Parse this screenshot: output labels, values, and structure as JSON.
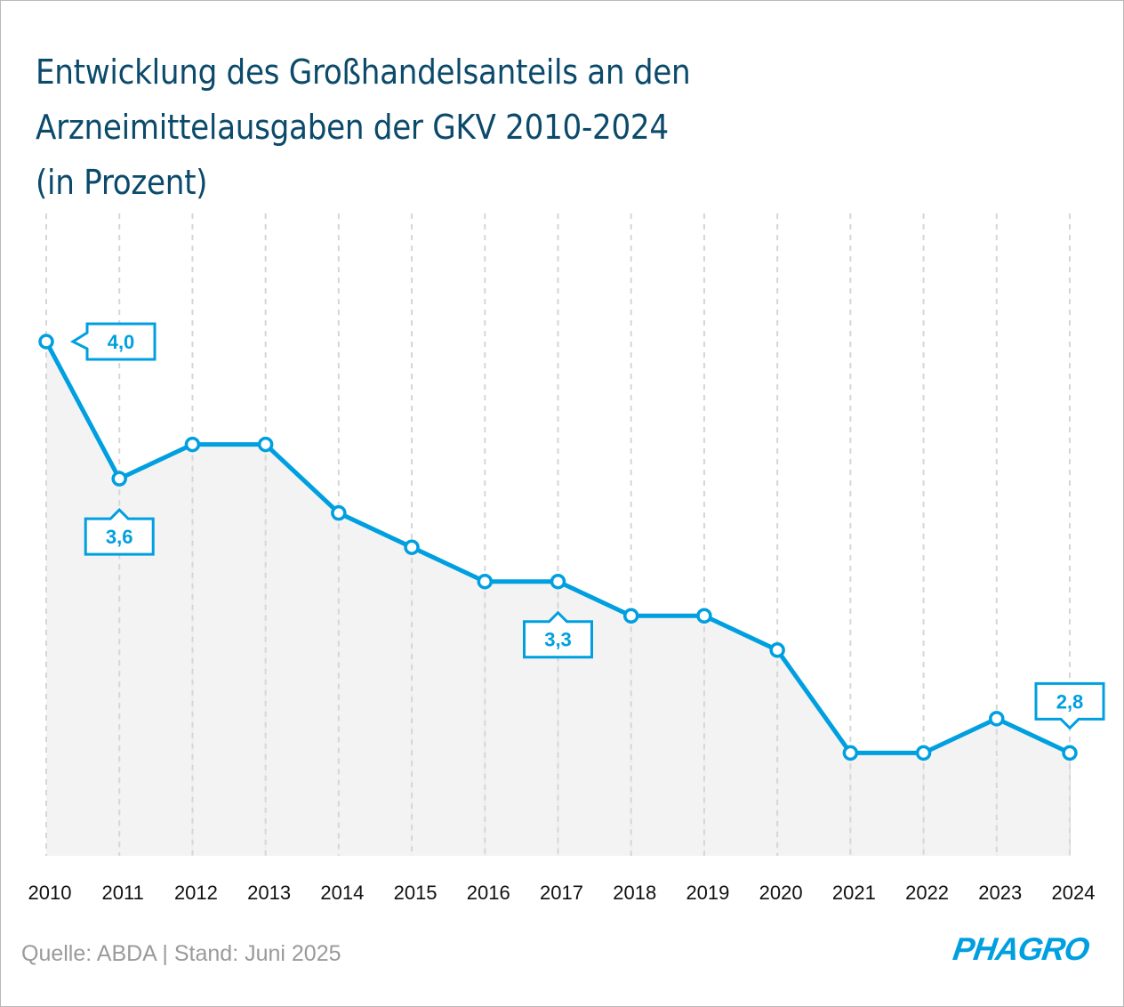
{
  "title_lines": [
    "Entwicklung des Großhandelsanteils an den",
    "Arzneimittelausgaben der GKV 2010-2024",
    "(in Prozent)"
  ],
  "footer": {
    "source": "Quelle: ABDA | Stand: Juni 2025",
    "logo": "PHAGRO"
  },
  "colors": {
    "line": "#009fe0",
    "area": "#f1f1f1",
    "grid": "#d6d6d6",
    "title": "#0b4a6b"
  },
  "chart_data": {
    "type": "line",
    "title": "Entwicklung des Großhandelsanteils an den Arzneimittelausgaben der GKV 2010-2024 (in Prozent)",
    "xlabel": "",
    "ylabel": "Prozent",
    "grid": "vertical-dashed",
    "area_fill": true,
    "categories": [
      "2010",
      "2011",
      "2012",
      "2013",
      "2014",
      "2015",
      "2016",
      "2017",
      "2018",
      "2019",
      "2020",
      "2021",
      "2022",
      "2023",
      "2024"
    ],
    "values": [
      4.0,
      3.6,
      3.7,
      3.7,
      3.5,
      3.4,
      3.3,
      3.3,
      3.2,
      3.2,
      3.1,
      2.8,
      2.8,
      2.9,
      2.8
    ],
    "ylim": [
      2.5,
      4.0
    ],
    "annotations": [
      {
        "category": "2010",
        "label": "4,0",
        "position": "right"
      },
      {
        "category": "2011",
        "label": "3,6",
        "position": "below"
      },
      {
        "category": "2017",
        "label": "3,3",
        "position": "below"
      },
      {
        "category": "2024",
        "label": "2,8",
        "position": "above"
      }
    ]
  }
}
